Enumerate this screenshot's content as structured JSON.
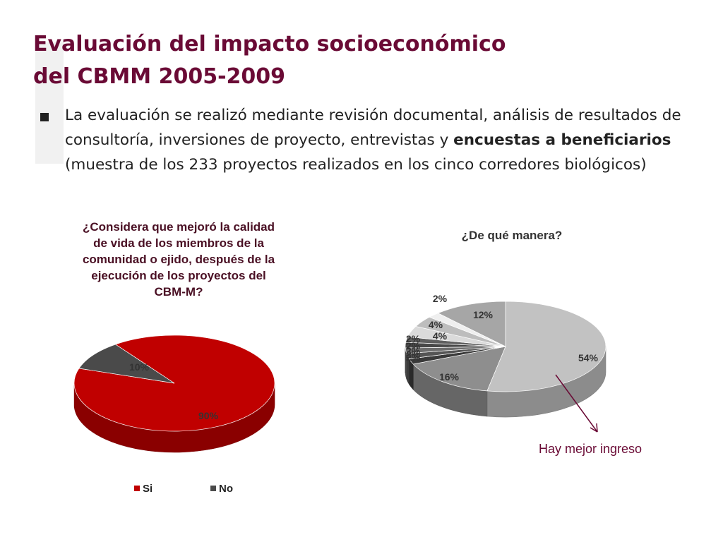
{
  "slide": {
    "title_line1": "Evaluación del impacto socioeconómico",
    "title_line2": "del CBMM 2005-2009",
    "bullet": {
      "text_before": "La evaluación se realizó mediante revisión documental, análisis de resultados de consultoría, inversiones de proyecto, entrevistas y ",
      "text_bold": "encuestas a beneficiarios",
      "text_after": " (muestra de los 233 proyectos realizados en los cinco corredores biológicos)"
    }
  },
  "colors": {
    "title": "#6a0a35",
    "si": "#c00000",
    "no": "#4a4a4a"
  },
  "chart_data": [
    {
      "type": "pie",
      "title": "¿Considera que mejoró la calidad de vida de los miembros de la comunidad o ejido, después de la ejecución de los proyectos del CBM-M?",
      "categories": [
        "Si",
        "No"
      ],
      "values": [
        90,
        10
      ],
      "labels": [
        "90%",
        "10%"
      ],
      "legend": {
        "position": "bottom",
        "entries": [
          "Si",
          "No"
        ]
      },
      "style": "3d"
    },
    {
      "type": "pie",
      "title": "¿De qué manera?",
      "values": [
        54,
        16,
        2,
        2,
        2,
        2,
        2,
        4,
        4,
        2,
        12
      ],
      "labels": [
        "54%",
        "16%",
        "2%",
        "2%",
        "2%",
        "2%",
        "2%",
        "4%",
        "4%",
        "2%",
        "12%"
      ],
      "annotations": [
        {
          "text": "Hay mejor ingreso",
          "points_to": "54%"
        }
      ],
      "style": "3d"
    }
  ]
}
